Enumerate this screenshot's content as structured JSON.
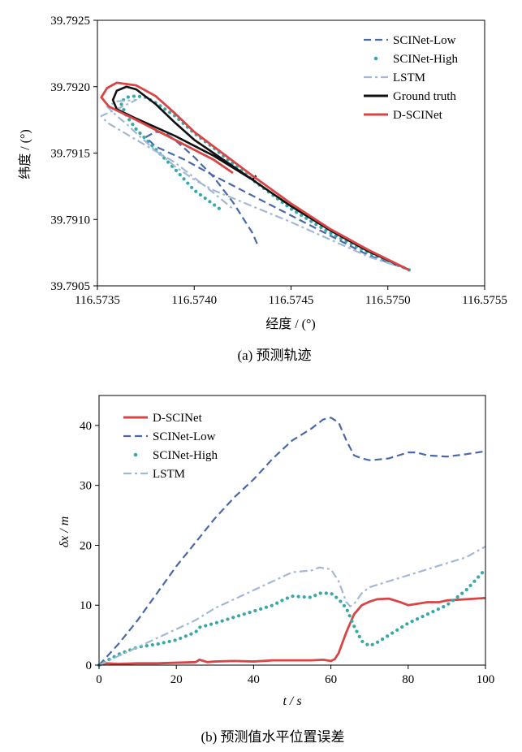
{
  "chart_data": [
    {
      "type": "line",
      "caption": "(a)  预测轨迹",
      "xlabel": "经度 / (°)",
      "ylabel": "纬度 / (°)",
      "xlim": [
        116.5735,
        116.5755
      ],
      "ylim": [
        39.7905,
        39.7925
      ],
      "xticks": [
        "116.5735",
        "116.5740",
        "116.5745",
        "116.5750",
        "116.5755"
      ],
      "yticks": [
        "39.7905",
        "39.7910",
        "39.7915",
        "39.7920",
        "39.7925"
      ],
      "legend_position": "top-right",
      "series": [
        {
          "name": "SCINet-Low",
          "color": "#4a68a8",
          "style": "dashed",
          "points": [
            [
              116.57511,
              39.79062
            ],
            [
              116.5749,
              39.79073
            ],
            [
              116.5747,
              39.79088
            ],
            [
              116.5745,
              39.79103
            ],
            [
              116.5743,
              39.79118
            ],
            [
              116.5741,
              39.79133
            ],
            [
              116.57395,
              39.79145
            ],
            [
              116.5738,
              39.79155
            ],
            [
              116.57375,
              39.79162
            ],
            [
              116.5738,
              39.79166
            ],
            [
              116.57385,
              39.79165
            ],
            [
              116.5739,
              39.7916
            ],
            [
              116.574,
              39.79147
            ],
            [
              116.5741,
              39.79132
            ],
            [
              116.5742,
              39.79113
            ],
            [
              116.5743,
              39.7909
            ],
            [
              116.57433,
              39.7908
            ]
          ]
        },
        {
          "name": "SCINet-High",
          "color": "#3aa8a8",
          "style": "dotted",
          "points": [
            [
              116.57511,
              39.79062
            ],
            [
              116.5749,
              39.79075
            ],
            [
              116.5747,
              39.7909
            ],
            [
              116.5745,
              39.79108
            ],
            [
              116.5743,
              39.7913
            ],
            [
              116.5742,
              39.79142
            ],
            [
              116.5741,
              39.79154
            ],
            [
              116.574,
              39.79165
            ],
            [
              116.5739,
              39.79178
            ],
            [
              116.5738,
              39.79188
            ],
            [
              116.57375,
              39.79192
            ],
            [
              116.5737,
              39.79193
            ],
            [
              116.57365,
              39.79192
            ],
            [
              116.57362,
              39.79188
            ],
            [
              116.57365,
              39.79178
            ],
            [
              116.5737,
              39.79168
            ],
            [
              116.5738,
              39.79153
            ],
            [
              116.5739,
              39.79138
            ],
            [
              116.574,
              39.79122
            ],
            [
              116.57415,
              39.79106
            ]
          ]
        },
        {
          "name": "LSTM",
          "color": "#a2b8d4",
          "style": "dashdot",
          "points": [
            [
              116.57511,
              39.79062
            ],
            [
              116.5749,
              39.79072
            ],
            [
              116.5747,
              39.79085
            ],
            [
              116.5745,
              39.79098
            ],
            [
              116.5743,
              39.7911
            ],
            [
              116.5741,
              39.79122
            ],
            [
              116.574,
              39.7913
            ],
            [
              116.5739,
              39.7914
            ],
            [
              116.5738,
              39.79152
            ],
            [
              116.5737,
              39.79165
            ],
            [
              116.57365,
              39.79172
            ],
            [
              116.5736,
              39.79178
            ],
            [
              116.57355,
              39.79185
            ],
            [
              116.5736,
              39.79189
            ],
            [
              116.5737,
              39.7919
            ],
            [
              116.5736,
              39.79183
            ],
            [
              116.57352,
              39.79178
            ],
            [
              116.57355,
              39.79173
            ],
            [
              116.5737,
              39.7916
            ],
            [
              116.5739,
              39.79143
            ],
            [
              116.5741,
              39.7912
            ],
            [
              116.5742,
              39.79108
            ]
          ]
        },
        {
          "name": "Ground truth",
          "color": "#111111",
          "style": "solid",
          "points": [
            [
              116.57511,
              39.79062
            ],
            [
              116.5749,
              39.79076
            ],
            [
              116.5747,
              39.79092
            ],
            [
              116.5745,
              39.7911
            ],
            [
              116.5743,
              39.7913
            ],
            [
              116.5741,
              39.7915
            ],
            [
              116.574,
              39.7916
            ],
            [
              116.5739,
              39.79173
            ],
            [
              116.5738,
              39.79187
            ],
            [
              116.5737,
              39.79198
            ],
            [
              116.57365,
              39.792
            ],
            [
              116.5736,
              39.79197
            ],
            [
              116.57358,
              39.7919
            ],
            [
              116.5736,
              39.79183
            ],
            [
              116.5737,
              39.79176
            ],
            [
              116.5739,
              39.79163
            ],
            [
              116.5741,
              39.79148
            ],
            [
              116.5743,
              39.7913
            ],
            [
              116.57432,
              39.79133
            ]
          ]
        },
        {
          "name": "D-SCINet",
          "color": "#d94545",
          "style": "solid",
          "points": [
            [
              116.57511,
              39.79062
            ],
            [
              116.5749,
              39.79077
            ],
            [
              116.5747,
              39.79093
            ],
            [
              116.5745,
              39.79112
            ],
            [
              116.5743,
              39.79133
            ],
            [
              116.5741,
              39.79155
            ],
            [
              116.574,
              39.79166
            ],
            [
              116.5739,
              39.7918
            ],
            [
              116.5738,
              39.79193
            ],
            [
              116.5737,
              39.79201
            ],
            [
              116.5736,
              39.79203
            ],
            [
              116.57355,
              39.79199
            ],
            [
              116.57352,
              39.79192
            ],
            [
              116.57356,
              39.79185
            ],
            [
              116.5737,
              39.79175
            ],
            [
              116.5739,
              39.7916
            ],
            [
              116.5741,
              39.79145
            ],
            [
              116.5742,
              39.79135
            ]
          ]
        }
      ]
    },
    {
      "type": "line",
      "caption": "(b)  预测值水平位置误差",
      "xlabel": "t / s",
      "ylabel": "δx / m",
      "xlim": [
        0,
        100
      ],
      "ylim": [
        0,
        45
      ],
      "xticks": [
        "0",
        "20",
        "40",
        "60",
        "80",
        "100"
      ],
      "yticks": [
        "0",
        "10",
        "20",
        "30",
        "40"
      ],
      "legend_position": "top-left",
      "series": [
        {
          "name": "D-SCINet",
          "color": "#d94545",
          "style": "solid",
          "points": [
            [
              0,
              0
            ],
            [
              2,
              0.3
            ],
            [
              5,
              0.2
            ],
            [
              10,
              0.3
            ],
            [
              15,
              0.3
            ],
            [
              20,
              0.4
            ],
            [
              25,
              0.5
            ],
            [
              26,
              0.9
            ],
            [
              28,
              0.5
            ],
            [
              30,
              0.6
            ],
            [
              35,
              0.7
            ],
            [
              40,
              0.6
            ],
            [
              45,
              0.8
            ],
            [
              50,
              0.8
            ],
            [
              55,
              0.8
            ],
            [
              58,
              0.9
            ],
            [
              60,
              0.7
            ],
            [
              61,
              1.0
            ],
            [
              62,
              2.0
            ],
            [
              64,
              5.5
            ],
            [
              66,
              8.5
            ],
            [
              68,
              10.0
            ],
            [
              70,
              10.6
            ],
            [
              72,
              11.0
            ],
            [
              75,
              11.1
            ],
            [
              78,
              10.5
            ],
            [
              80,
              10.0
            ],
            [
              82,
              10.2
            ],
            [
              85,
              10.5
            ],
            [
              88,
              10.5
            ],
            [
              90,
              10.8
            ],
            [
              95,
              11.0
            ],
            [
              100,
              11.2
            ]
          ]
        },
        {
          "name": "SCINet-Low",
          "color": "#4a68a8",
          "style": "dashed",
          "points": [
            [
              0,
              0
            ],
            [
              5,
              3.5
            ],
            [
              10,
              7.5
            ],
            [
              15,
              12.0
            ],
            [
              20,
              16.5
            ],
            [
              25,
              20.5
            ],
            [
              30,
              24.5
            ],
            [
              35,
              28.0
            ],
            [
              40,
              31.0
            ],
            [
              45,
              34.5
            ],
            [
              50,
              37.5
            ],
            [
              55,
              39.5
            ],
            [
              58,
              41.0
            ],
            [
              60,
              41.3
            ],
            [
              62,
              40.5
            ],
            [
              64,
              37.5
            ],
            [
              66,
              35.0
            ],
            [
              68,
              34.5
            ],
            [
              70,
              34.2
            ],
            [
              72,
              34.3
            ],
            [
              75,
              34.5
            ],
            [
              80,
              35.5
            ],
            [
              82,
              35.5
            ],
            [
              85,
              35.0
            ],
            [
              90,
              34.8
            ],
            [
              95,
              35.2
            ],
            [
              100,
              35.7
            ]
          ]
        },
        {
          "name": "SCINet-High",
          "color": "#3aa8a8",
          "style": "dotted",
          "points": [
            [
              0,
              0
            ],
            [
              5,
              1.8
            ],
            [
              10,
              3.0
            ],
            [
              15,
              3.5
            ],
            [
              20,
              4.2
            ],
            [
              25,
              5.5
            ],
            [
              26,
              6.3
            ],
            [
              30,
              7.0
            ],
            [
              35,
              8.0
            ],
            [
              40,
              9.0
            ],
            [
              45,
              10.0
            ],
            [
              48,
              11.0
            ],
            [
              50,
              11.5
            ],
            [
              55,
              11.3
            ],
            [
              57,
              12.0
            ],
            [
              60,
              12.0
            ],
            [
              62,
              11.0
            ],
            [
              64,
              9.5
            ],
            [
              66,
              6.5
            ],
            [
              68,
              4.0
            ],
            [
              70,
              3.2
            ],
            [
              72,
              3.8
            ],
            [
              75,
              5.0
            ],
            [
              80,
              7.0
            ],
            [
              85,
              8.5
            ],
            [
              90,
              10.0
            ],
            [
              95,
              12.5
            ],
            [
              100,
              16.0
            ]
          ]
        },
        {
          "name": "LSTM",
          "color": "#a2b8d4",
          "style": "dashdot",
          "points": [
            [
              0,
              0
            ],
            [
              5,
              1.5
            ],
            [
              10,
              3.0
            ],
            [
              15,
              4.5
            ],
            [
              20,
              6.0
            ],
            [
              25,
              7.5
            ],
            [
              30,
              9.5
            ],
            [
              35,
              11.0
            ],
            [
              40,
              12.5
            ],
            [
              45,
              14.0
            ],
            [
              50,
              15.5
            ],
            [
              55,
              15.8
            ],
            [
              57,
              16.3
            ],
            [
              60,
              16.0
            ],
            [
              62,
              14.0
            ],
            [
              64,
              10.5
            ],
            [
              65,
              9.8
            ],
            [
              66,
              10.2
            ],
            [
              68,
              12.0
            ],
            [
              70,
              13.0
            ],
            [
              75,
              14.0
            ],
            [
              80,
              15.0
            ],
            [
              85,
              16.0
            ],
            [
              90,
              17.0
            ],
            [
              95,
              18.0
            ],
            [
              100,
              19.8
            ]
          ]
        }
      ]
    }
  ]
}
